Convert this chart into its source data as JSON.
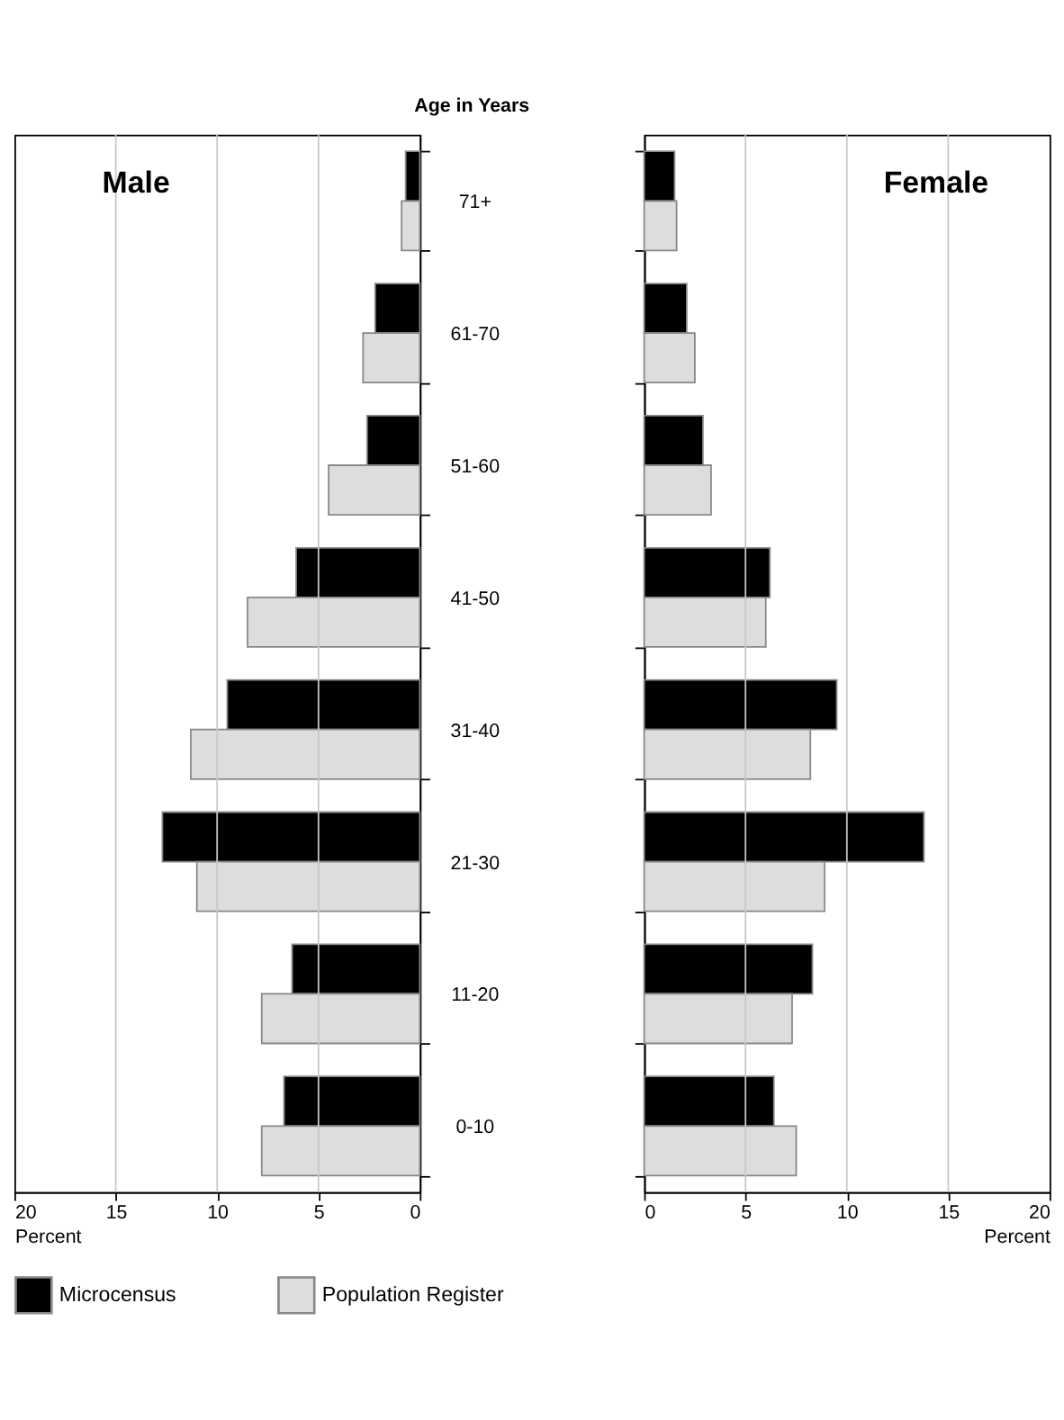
{
  "chart_data": [
    {
      "type": "bar",
      "orientation": "horizontal",
      "ylabel": "Age in Years",
      "xlabel": "Percent",
      "annotations": [
        "Male"
      ],
      "categories": [
        "71+",
        "61-70",
        "51-60",
        "41-50",
        "31-40",
        "21-30",
        "11-20",
        "0-10"
      ],
      "series": [
        {
          "name": "Microcensus",
          "color": "#000000",
          "values": [
            0.7,
            2.2,
            2.6,
            6.1,
            9.5,
            12.7,
            6.3,
            6.7
          ]
        },
        {
          "name": "Population Register",
          "color": "#dddddd",
          "values": [
            0.9,
            2.8,
            4.5,
            8.5,
            11.3,
            11.0,
            7.8,
            7.8
          ]
        }
      ],
      "xlim": [
        20,
        0
      ],
      "xticks": [
        20,
        15,
        10,
        5,
        0
      ],
      "grid": "x",
      "legend": "bottom"
    },
    {
      "type": "bar",
      "orientation": "horizontal",
      "xlabel": "Percent",
      "annotations": [
        "Female"
      ],
      "categories": [
        "71+",
        "61-70",
        "51-60",
        "41-50",
        "31-40",
        "21-30",
        "11-20",
        "0-10"
      ],
      "series": [
        {
          "name": "Microcensus",
          "color": "#000000",
          "values": [
            1.5,
            2.1,
            2.9,
            6.2,
            9.5,
            13.8,
            8.3,
            6.4
          ]
        },
        {
          "name": "Population Register",
          "color": "#dddddd",
          "values": [
            1.6,
            2.5,
            3.3,
            6.0,
            8.2,
            8.9,
            7.3,
            7.5
          ]
        }
      ],
      "xlim": [
        0,
        20
      ],
      "xticks": [
        0,
        5,
        10,
        15,
        20
      ],
      "grid": "x",
      "tick_labels": "x",
      "legend": false
    }
  ]
}
